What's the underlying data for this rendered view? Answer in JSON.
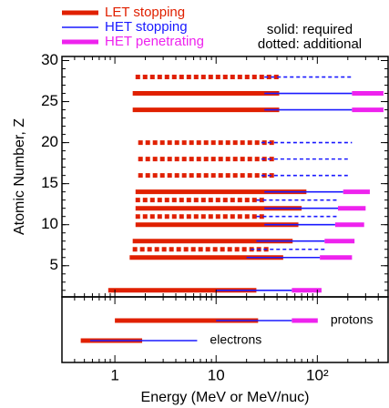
{
  "chart_data": {
    "type": "range",
    "legend": [
      {
        "name": "LET stopping",
        "key": "let",
        "color": "#e02000"
      },
      {
        "name": "HET stopping",
        "key": "het_stop",
        "color": "#1a1aff"
      },
      {
        "name": "HET penetrating",
        "key": "het_pen",
        "color": "#ee22ee"
      }
    ],
    "notes": [
      "solid: required",
      "dotted: additional"
    ],
    "ylabel": "Atomic Number, Z",
    "xlabel": "Energy  (MeV or MeV/nuc)",
    "xscale": "log",
    "xlim": [
      0.3,
      500
    ],
    "xticks": [
      1,
      10,
      {
        "value": 100,
        "label": "10²"
      }
    ],
    "ylim": [
      1.2,
      30.5
    ],
    "yticks": [
      5,
      10,
      15,
      20,
      25,
      30
    ],
    "minor_ticks": true,
    "rows": [
      {
        "z": 28,
        "required": false,
        "let": [
          1.6,
          44
        ],
        "het_stop": [
          30,
          220
        ],
        "het_pen": null
      },
      {
        "z": 26,
        "required": true,
        "let": [
          1.5,
          42
        ],
        "het_stop": [
          30,
          220
        ],
        "het_pen": [
          220,
          450
        ]
      },
      {
        "z": 24,
        "required": true,
        "let": [
          1.5,
          42
        ],
        "het_stop": [
          30,
          220
        ],
        "het_pen": [
          220,
          450
        ]
      },
      {
        "z": 20,
        "required": false,
        "let": [
          1.7,
          38
        ],
        "het_stop": [
          28,
          220
        ],
        "het_pen": null
      },
      {
        "z": 18,
        "required": false,
        "let": [
          1.7,
          38
        ],
        "het_stop": [
          28,
          200
        ],
        "het_pen": null
      },
      {
        "z": 16,
        "required": false,
        "let": [
          1.7,
          38
        ],
        "het_stop": [
          28,
          200
        ],
        "het_pen": null
      },
      {
        "z": 14,
        "required": true,
        "let": [
          1.6,
          78
        ],
        "het_stop": [
          30,
          180
        ],
        "het_pen": [
          180,
          330
        ]
      },
      {
        "z": 13,
        "required": false,
        "let": [
          1.6,
          31
        ],
        "het_stop": [
          25,
          160
        ],
        "het_pen": null
      },
      {
        "z": 12,
        "required": true,
        "let": [
          1.6,
          70
        ],
        "het_stop": [
          30,
          160
        ],
        "het_pen": [
          160,
          300
        ]
      },
      {
        "z": 11,
        "required": false,
        "let": [
          1.6,
          31
        ],
        "het_stop": [
          25,
          160
        ],
        "het_pen": null
      },
      {
        "z": 10,
        "required": true,
        "let": [
          1.6,
          65
        ],
        "het_stop": [
          30,
          150
        ],
        "het_pen": [
          150,
          290
        ]
      },
      {
        "z": 8,
        "required": true,
        "let": [
          1.5,
          57
        ],
        "het_stop": [
          25,
          118
        ],
        "het_pen": [
          118,
          233
        ]
      },
      {
        "z": 7,
        "required": false,
        "let": [
          1.5,
          34
        ],
        "het_stop": [
          22,
          118
        ],
        "het_pen": null
      },
      {
        "z": 6,
        "required": true,
        "let": [
          1.4,
          46
        ],
        "het_stop": [
          20,
          106
        ],
        "het_pen": [
          106,
          220
        ]
      },
      {
        "z": 2,
        "required": true,
        "let": [
          0.86,
          25
        ],
        "het_stop": [
          10,
          56
        ],
        "het_pen": [
          56,
          110
        ]
      }
    ],
    "particles": [
      {
        "name": "protons",
        "let": [
          1.0,
          26
        ],
        "het_stop": [
          10,
          56
        ],
        "het_pen": [
          56,
          101
        ]
      },
      {
        "name": "electrons",
        "let": [
          0.46,
          1.86
        ],
        "het_stop": [
          0.57,
          6.5
        ],
        "het_pen": null
      }
    ]
  }
}
